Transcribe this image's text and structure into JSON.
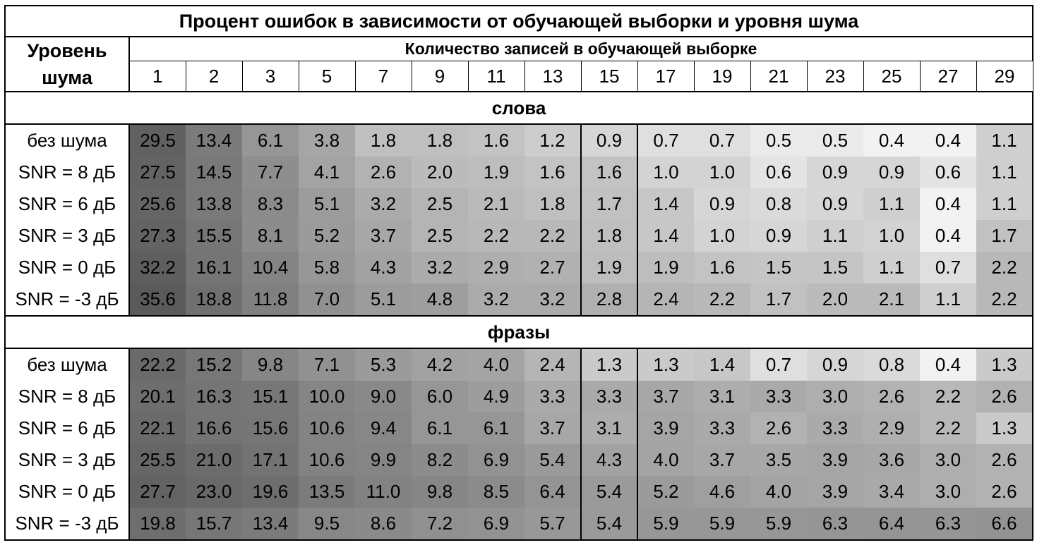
{
  "table": {
    "title": "Процент ошибок в зависимости от обучающей выборки и уровня шума",
    "noise_header_line1": "Уровень",
    "noise_header_line2": "шума",
    "count_header": "Количество записей в обучающей выборке",
    "columns": [
      "1",
      "2",
      "3",
      "5",
      "7",
      "9",
      "11",
      "13",
      "15",
      "17",
      "19",
      "21",
      "23",
      "25",
      "27",
      "29"
    ],
    "highlight_column": "15",
    "sections": [
      {
        "label": "слова",
        "rows": [
          {
            "label": "без шума",
            "values": [
              "29.5",
              "13.4",
              "6.1",
              "3.8",
              "1.8",
              "1.8",
              "1.6",
              "1.2",
              "0.9",
              "0.7",
              "0.7",
              "0.5",
              "0.5",
              "0.4",
              "0.4",
              "1.1"
            ]
          },
          {
            "label": "SNR = 8 дБ",
            "values": [
              "27.5",
              "14.5",
              "7.7",
              "4.1",
              "2.6",
              "2.0",
              "1.9",
              "1.6",
              "1.6",
              "1.0",
              "1.0",
              "0.6",
              "0.9",
              "0.9",
              "0.6",
              "1.1"
            ]
          },
          {
            "label": "SNR = 6 дБ",
            "values": [
              "25.6",
              "13.8",
              "8.3",
              "5.1",
              "3.2",
              "2.5",
              "2.1",
              "1.8",
              "1.7",
              "1.4",
              "0.9",
              "0.8",
              "0.9",
              "1.1",
              "0.4",
              "1.1"
            ]
          },
          {
            "label": "SNR = 3 дБ",
            "values": [
              "27.3",
              "15.5",
              "8.1",
              "5.2",
              "3.7",
              "2.5",
              "2.2",
              "2.2",
              "1.8",
              "1.4",
              "1.0",
              "0.9",
              "1.1",
              "1.0",
              "0.4",
              "1.7"
            ]
          },
          {
            "label": "SNR = 0 дБ",
            "values": [
              "32.2",
              "16.1",
              "10.4",
              "5.8",
              "4.3",
              "3.2",
              "2.9",
              "2.7",
              "1.9",
              "1.9",
              "1.6",
              "1.5",
              "1.5",
              "1.1",
              "0.7",
              "2.2"
            ]
          },
          {
            "label": "SNR = -3 дБ",
            "values": [
              "35.6",
              "18.8",
              "11.8",
              "7.0",
              "5.1",
              "4.8",
              "3.2",
              "3.2",
              "2.8",
              "2.4",
              "2.2",
              "1.7",
              "2.0",
              "2.1",
              "1.1",
              "2.2"
            ]
          }
        ]
      },
      {
        "label": "фразы",
        "rows": [
          {
            "label": "без шума",
            "values": [
              "22.2",
              "15.2",
              "9.8",
              "7.1",
              "5.3",
              "4.2",
              "4.0",
              "2.4",
              "1.3",
              "1.3",
              "1.4",
              "0.7",
              "0.9",
              "0.8",
              "0.4",
              "1.3"
            ]
          },
          {
            "label": "SNR = 8 дБ",
            "values": [
              "20.1",
              "16.3",
              "15.1",
              "10.0",
              "9.0",
              "6.0",
              "4.9",
              "3.3",
              "3.3",
              "3.7",
              "3.1",
              "3.3",
              "3.0",
              "2.6",
              "2.2",
              "2.6"
            ]
          },
          {
            "label": "SNR = 6 дБ",
            "values": [
              "22.1",
              "16.6",
              "15.6",
              "10.6",
              "9.4",
              "6.1",
              "6.1",
              "3.7",
              "3.1",
              "3.9",
              "3.3",
              "2.6",
              "3.3",
              "2.9",
              "2.2",
              "1.3"
            ]
          },
          {
            "label": "SNR = 3 дБ",
            "values": [
              "25.5",
              "21.0",
              "17.1",
              "10.6",
              "9.9",
              "8.2",
              "6.9",
              "5.4",
              "4.3",
              "4.0",
              "3.7",
              "3.5",
              "3.9",
              "3.6",
              "3.0",
              "2.6"
            ]
          },
          {
            "label": "SNR = 0 дБ",
            "values": [
              "27.7",
              "23.0",
              "19.6",
              "13.5",
              "11.0",
              "9.8",
              "8.5",
              "6.4",
              "5.4",
              "5.2",
              "4.6",
              "4.0",
              "3.9",
              "3.4",
              "3.0",
              "2.6"
            ]
          },
          {
            "label": "SNR = -3 дБ",
            "values": [
              "19.8",
              "15.7",
              "13.4",
              "9.5",
              "8.6",
              "7.2",
              "6.9",
              "5.7",
              "5.4",
              "5.9",
              "5.9",
              "5.9",
              "6.3",
              "6.4",
              "6.3",
              "6.6"
            ]
          }
        ]
      }
    ]
  }
}
